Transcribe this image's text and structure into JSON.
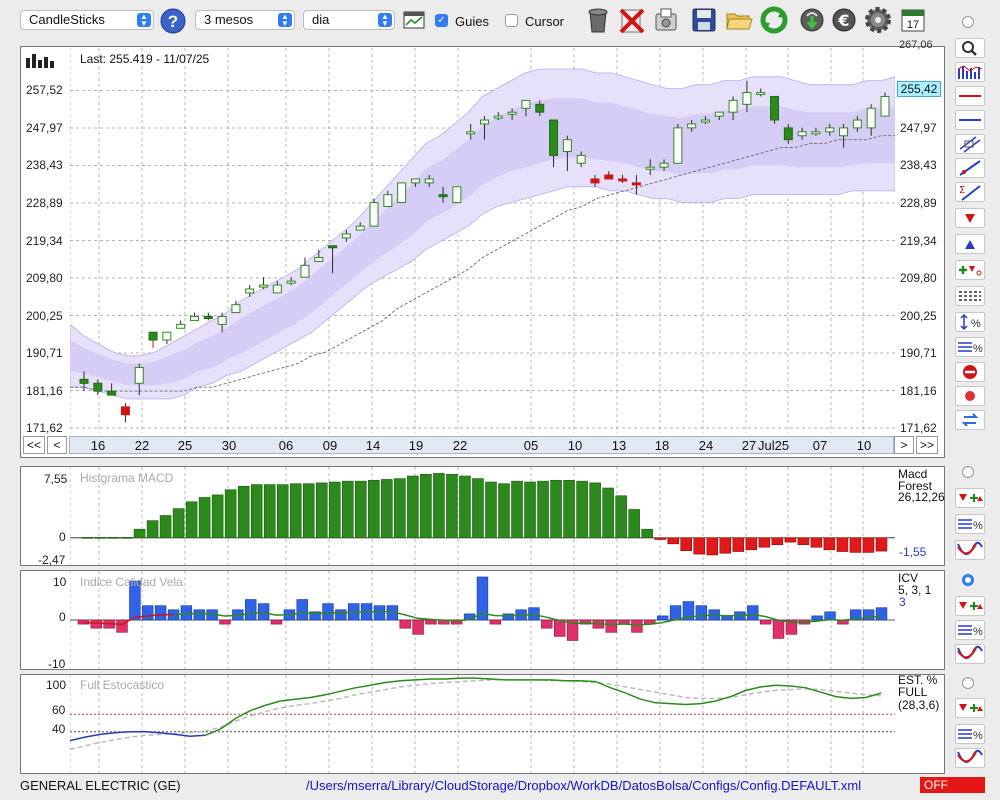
{
  "toolbar": {
    "chart_type": "CandleSticks",
    "period": "3 mesos",
    "interval": "dia",
    "guides_label": "Guies",
    "guides_checked": true,
    "cursor_label": "Cursor",
    "cursor_checked": false,
    "calendar_day": "17",
    "icons": [
      "help-icon",
      "chart-settings-icon",
      "trash-icon",
      "delete-icon",
      "export-icon",
      "save-icon",
      "open-folder-icon",
      "refresh-icon",
      "download-icon",
      "currency-icon",
      "gear-icon",
      "calendar-icon"
    ]
  },
  "price_panel": {
    "last_label": "Last: 255.419 - 11/07/25",
    "y_ticks": [
      "257,52",
      "247,97",
      "238,43",
      "228,89",
      "219,34",
      "209,80",
      "200,25",
      "190,71",
      "181,16",
      "171,62"
    ],
    "y_top_partial": "267,06",
    "current_price": "255,42",
    "x_ticks": [
      "16",
      "22",
      "25",
      "30",
      "06",
      "09",
      "14",
      "19",
      "22",
      "05",
      "10",
      "13",
      "18",
      "24",
      "27",
      "Jul25",
      "07",
      "10"
    ],
    "nav": {
      "first": "<<",
      "prev": "<",
      "next": ">",
      "last": ">>"
    }
  },
  "macd_panel": {
    "title": "Histgrama MACD",
    "legend_name": "Macd Forest",
    "legend_params": "26,12,26",
    "value": "-1,55",
    "y_ticks": [
      "7,55",
      "0",
      "-2,47"
    ]
  },
  "icv_panel": {
    "title": "Indice Calidad Vela",
    "legend_name": "ICV",
    "legend_params": "5, 3, 1",
    "value": "3",
    "y_ticks": [
      "10",
      "0",
      "-10"
    ]
  },
  "stoch_panel": {
    "title": "Full Estocastico",
    "legend_name": "EST. % FULL",
    "legend_params": "(28,3,6)",
    "y_ticks": [
      "100",
      "60",
      "40"
    ]
  },
  "status": {
    "company": "GENERAL ELECTRIC (GE)",
    "config_path": "/Users/mserra/Library/CloudStorage/Dropbox/WorkDB/DatosBolsa/Configs/Config.DEFAULT.xml",
    "state": "OFF"
  },
  "chart_data": [
    {
      "type": "candlestick",
      "ylim": [
        171.62,
        267.06
      ],
      "series": [
        {
          "o": 184,
          "h": 186,
          "l": 181,
          "c": 183,
          "up": false
        },
        {
          "o": 183,
          "h": 184,
          "l": 180,
          "c": 181,
          "up": false
        },
        {
          "o": 181,
          "h": 183,
          "l": 180,
          "c": 180,
          "up": false
        },
        {
          "o": 177,
          "h": 178,
          "l": 173,
          "c": 175,
          "up": false
        },
        {
          "o": 183,
          "h": 188,
          "l": 180,
          "c": 187,
          "up": true
        },
        {
          "o": 194,
          "h": 196,
          "l": 192,
          "c": 196,
          "up": false
        },
        {
          "o": 194,
          "h": 196,
          "l": 193,
          "c": 196,
          "up": true
        },
        {
          "o": 197,
          "h": 199,
          "l": 197,
          "c": 198,
          "up": true
        },
        {
          "o": 199,
          "h": 201,
          "l": 199,
          "c": 200,
          "up": true
        },
        {
          "o": 200,
          "h": 201,
          "l": 199,
          "c": 200,
          "up": false
        },
        {
          "o": 198,
          "h": 201,
          "l": 196,
          "c": 200,
          "up": true
        },
        {
          "o": 201,
          "h": 204,
          "l": 201,
          "c": 203,
          "up": true
        },
        {
          "o": 206,
          "h": 208,
          "l": 205,
          "c": 207,
          "up": true
        },
        {
          "o": 208,
          "h": 210,
          "l": 207,
          "c": 208,
          "up": true
        },
        {
          "o": 206,
          "h": 209,
          "l": 206,
          "c": 208,
          "up": true
        },
        {
          "o": 209,
          "h": 210,
          "l": 208,
          "c": 209,
          "up": true
        },
        {
          "o": 210,
          "h": 215,
          "l": 210,
          "c": 213,
          "up": true
        },
        {
          "o": 214,
          "h": 217,
          "l": 214,
          "c": 215,
          "up": true
        },
        {
          "o": 218,
          "h": 218,
          "l": 211,
          "c": 218,
          "up": false
        },
        {
          "o": 220,
          "h": 222,
          "l": 219,
          "c": 221,
          "up": true
        },
        {
          "o": 222,
          "h": 224,
          "l": 222,
          "c": 223,
          "up": true
        },
        {
          "o": 223,
          "h": 230,
          "l": 223,
          "c": 229,
          "up": true
        },
        {
          "o": 228,
          "h": 232,
          "l": 228,
          "c": 231,
          "up": true
        },
        {
          "o": 229,
          "h": 234,
          "l": 229,
          "c": 234,
          "up": true
        },
        {
          "o": 234,
          "h": 235,
          "l": 233,
          "c": 235,
          "up": true
        },
        {
          "o": 235,
          "h": 236,
          "l": 233,
          "c": 234,
          "up": true
        },
        {
          "o": 231,
          "h": 233,
          "l": 229,
          "c": 231,
          "up": false
        },
        {
          "o": 229,
          "h": 233,
          "l": 229,
          "c": 233,
          "up": true
        },
        {
          "o": 247,
          "h": 249,
          "l": 245,
          "c": 247,
          "up": true
        },
        {
          "o": 249,
          "h": 251,
          "l": 245,
          "c": 250,
          "up": true
        },
        {
          "o": 251,
          "h": 252,
          "l": 250,
          "c": 251,
          "up": true
        },
        {
          "o": 252,
          "h": 253,
          "l": 250,
          "c": 252,
          "up": true
        },
        {
          "o": 253,
          "h": 255,
          "l": 251,
          "c": 255,
          "up": true
        },
        {
          "o": 254,
          "h": 255,
          "l": 251,
          "c": 252,
          "up": false
        },
        {
          "o": 250,
          "h": 250,
          "l": 238,
          "c": 241,
          "up": false
        },
        {
          "o": 242,
          "h": 246,
          "l": 237,
          "c": 245,
          "up": true
        },
        {
          "o": 241,
          "h": 242,
          "l": 238,
          "c": 239,
          "up": true
        },
        {
          "o": 235,
          "h": 236,
          "l": 233,
          "c": 234,
          "up": false
        },
        {
          "o": 236,
          "h": 237,
          "l": 235,
          "c": 235,
          "up": false
        },
        {
          "o": 235,
          "h": 236,
          "l": 234,
          "c": 235,
          "up": false
        },
        {
          "o": 234,
          "h": 236,
          "l": 231,
          "c": 234,
          "up": false
        },
        {
          "o": 238,
          "h": 240,
          "l": 236,
          "c": 238,
          "up": true
        },
        {
          "o": 239,
          "h": 240,
          "l": 237,
          "c": 238,
          "up": true
        },
        {
          "o": 239,
          "h": 249,
          "l": 239,
          "c": 248,
          "up": true
        },
        {
          "o": 248,
          "h": 250,
          "l": 247,
          "c": 249,
          "up": true
        },
        {
          "o": 250,
          "h": 251,
          "l": 249,
          "c": 250,
          "up": true
        },
        {
          "o": 251,
          "h": 252,
          "l": 250,
          "c": 252,
          "up": true
        },
        {
          "o": 252,
          "h": 256,
          "l": 250,
          "c": 255,
          "up": true
        },
        {
          "o": 254,
          "h": 260,
          "l": 252,
          "c": 257,
          "up": true
        },
        {
          "o": 257,
          "h": 258,
          "l": 256,
          "c": 257,
          "up": true
        },
        {
          "o": 256,
          "h": 256,
          "l": 249,
          "c": 250,
          "up": false
        },
        {
          "o": 248,
          "h": 249,
          "l": 244,
          "c": 245,
          "up": false
        },
        {
          "o": 246,
          "h": 248,
          "l": 245,
          "c": 247,
          "up": true
        },
        {
          "o": 247,
          "h": 248,
          "l": 246,
          "c": 247,
          "up": true
        },
        {
          "o": 247,
          "h": 249,
          "l": 246,
          "c": 248,
          "up": true
        },
        {
          "o": 246,
          "h": 249,
          "l": 243,
          "c": 248,
          "up": true
        },
        {
          "o": 248,
          "h": 251,
          "l": 247,
          "c": 250,
          "up": true
        },
        {
          "o": 248,
          "h": 254,
          "l": 246,
          "c": 253,
          "up": true
        },
        {
          "o": 251,
          "h": 257,
          "l": 251,
          "c": 256,
          "up": true
        }
      ],
      "bollinger_upper": [
        198,
        195,
        193,
        191,
        190,
        190,
        191,
        193,
        195,
        197,
        199,
        201,
        204,
        206,
        208,
        210,
        212,
        215,
        218,
        221,
        224,
        228,
        232,
        236,
        240,
        244,
        246,
        249,
        252,
        256,
        258,
        260,
        262,
        263,
        263,
        263,
        263,
        262,
        262,
        261,
        260,
        259,
        258,
        258,
        259,
        259,
        260,
        260,
        261,
        261,
        261,
        260,
        259,
        259,
        259,
        259,
        260,
        260,
        261
      ],
      "bollinger_middle": [
        190,
        189,
        188,
        187,
        186,
        186,
        186,
        187,
        188,
        190,
        191,
        193,
        195,
        197,
        199,
        201,
        203,
        206,
        209,
        212,
        215,
        218,
        221,
        224,
        227,
        231,
        233,
        235,
        238,
        241,
        243,
        245,
        246,
        247,
        248,
        248,
        248,
        247,
        247,
        246,
        245,
        244,
        244,
        243,
        244,
        244,
        245,
        245,
        246,
        246,
        246,
        245,
        245,
        245,
        245,
        245,
        246,
        246,
        246
      ],
      "bollinger_lower": [
        182,
        182,
        181,
        180,
        179,
        179,
        179,
        179,
        180,
        182,
        183,
        185,
        186,
        188,
        190,
        192,
        194,
        196,
        199,
        202,
        205,
        208,
        210,
        212,
        214,
        217,
        219,
        221,
        223,
        226,
        228,
        229,
        230,
        231,
        232,
        233,
        233,
        233,
        232,
        232,
        231,
        230,
        230,
        229,
        229,
        229,
        230,
        230,
        231,
        231,
        231,
        231,
        231,
        231,
        231,
        232,
        232,
        232,
        232
      ],
      "moving_average": [
        182,
        182,
        181,
        181,
        181,
        181,
        181,
        181,
        181,
        182,
        182,
        183,
        184,
        185,
        186,
        187,
        188,
        190,
        191,
        193,
        195,
        197,
        199,
        202,
        204,
        206,
        208,
        210,
        212,
        215,
        217,
        219,
        221,
        223,
        225,
        227,
        228,
        230,
        231,
        232,
        233,
        234,
        235,
        236,
        237,
        238,
        239,
        240,
        241,
        242,
        243,
        243,
        244,
        244,
        245,
        245,
        245,
        246,
        246
      ]
    },
    {
      "type": "bar",
      "ylim": [
        -2.47,
        7.55
      ],
      "values": [
        0.05,
        0.05,
        0.05,
        0.05,
        1.0,
        2.0,
        2.6,
        3.4,
        4.2,
        4.7,
        5.0,
        5.6,
        6.0,
        6.2,
        6.2,
        6.2,
        6.3,
        6.3,
        6.4,
        6.5,
        6.6,
        6.6,
        6.7,
        6.8,
        6.9,
        7.2,
        7.4,
        7.5,
        7.4,
        7.2,
        6.9,
        6.5,
        6.3,
        6.6,
        6.5,
        6.6,
        6.7,
        6.7,
        6.6,
        6.4,
        5.8,
        4.9,
        3.3,
        1.0,
        -0.2,
        -0.7,
        -1.5,
        -1.9,
        -2.0,
        -1.8,
        -1.6,
        -1.4,
        -1.1,
        -0.8,
        -0.5,
        -0.8,
        -1.1,
        -1.4,
        -1.6,
        -1.7,
        -1.7,
        -1.55
      ]
    },
    {
      "type": "bar",
      "ylim": [
        -10,
        10
      ],
      "values": [
        -1,
        -2,
        -2,
        -3,
        9.5,
        3.5,
        3.5,
        2.5,
        3.5,
        2.5,
        2.5,
        -1,
        2.5,
        5,
        4,
        -1,
        2.5,
        5,
        2,
        4,
        2.5,
        4,
        4,
        3.5,
        3.5,
        -2,
        -3.5,
        -1,
        -1,
        -1,
        1.5,
        10.5,
        -1,
        1.5,
        2.5,
        3,
        -2,
        -4,
        -5,
        -1,
        -2,
        -3,
        -1,
        -3,
        -1,
        1,
        3.5,
        4.5,
        3.5,
        2.5,
        1,
        2,
        3.5,
        -1,
        -4.5,
        -3.5,
        -1,
        1,
        2,
        -1,
        2.5,
        2.5,
        3
      ]
    },
    {
      "type": "line",
      "ylim": [
        0,
        100
      ],
      "series": [
        {
          "values": [
            30,
            34,
            37,
            39,
            40,
            40,
            39,
            37,
            35,
            36,
            43,
            55,
            64,
            70,
            75,
            77,
            79,
            82,
            86,
            90,
            93,
            96,
            98,
            99,
            100,
            100,
            101,
            101,
            100,
            99,
            99,
            99,
            99,
            98,
            98,
            97,
            90,
            84,
            77,
            73,
            72,
            71,
            72,
            75,
            80,
            87,
            91,
            93,
            92,
            90,
            85,
            80,
            78,
            79,
            84
          ]
        },
        {
          "values": [
            20,
            24,
            28,
            31,
            34,
            36,
            37,
            38,
            39,
            41,
            45,
            52,
            58,
            63,
            67,
            70,
            72,
            75,
            78,
            82,
            85,
            88,
            91,
            93,
            95,
            96,
            97,
            98,
            99,
            99,
            99,
            99,
            98,
            98,
            97,
            96,
            94,
            91,
            88,
            85,
            82,
            79,
            78,
            78,
            79,
            82,
            85,
            87,
            88,
            89,
            88,
            86,
            84,
            82,
            81
          ]
        }
      ]
    }
  ]
}
